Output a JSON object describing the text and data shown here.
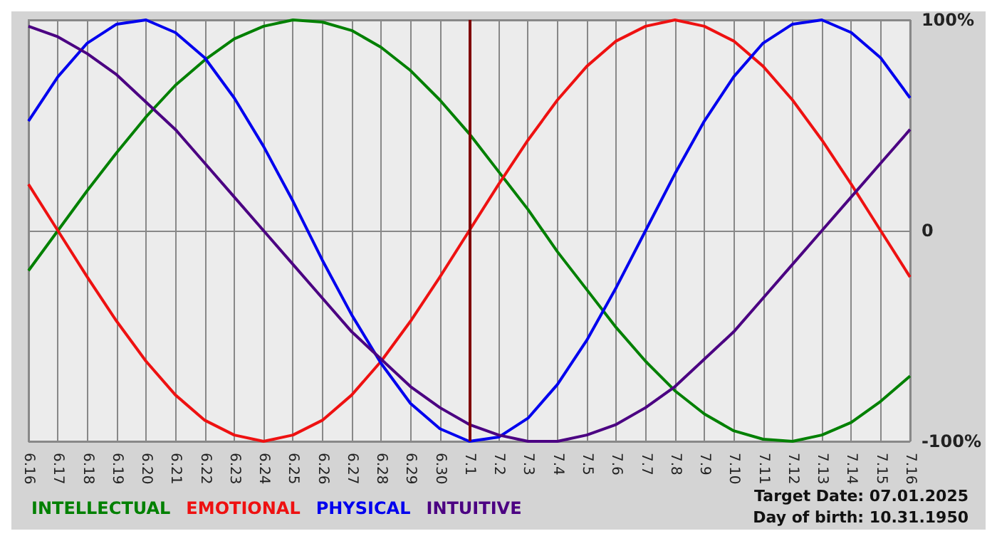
{
  "chart_data": {
    "type": "line",
    "categories": [
      "6.16",
      "6.17",
      "6.18",
      "6.19",
      "6.20",
      "6.21",
      "6.22",
      "6.23",
      "6.24",
      "6.25",
      "6.26",
      "6.27",
      "6.28",
      "6.29",
      "6.30",
      "7.1",
      "7.2",
      "7.3",
      "7.4",
      "7.5",
      "7.6",
      "7.7",
      "7.8",
      "7.9",
      "7.10",
      "7.11",
      "7.12",
      "7.13",
      "7.14",
      "7.15",
      "7.16"
    ],
    "series": [
      {
        "name": "INTELLECTUAL",
        "color": "#008000",
        "values": [
          -19,
          0,
          19,
          37,
          54,
          69,
          81,
          91,
          97,
          100,
          99,
          95,
          87,
          76,
          62,
          46,
          28,
          10,
          -10,
          -28,
          -46,
          -62,
          -76,
          -87,
          -95,
          -99,
          -100,
          -97,
          -91,
          -81,
          -69
        ]
      },
      {
        "name": "EMOTIONAL",
        "color": "#ee1111",
        "values": [
          22,
          0,
          -22,
          -43,
          -62,
          -78,
          -90,
          -97,
          -100,
          -97,
          -90,
          -78,
          -62,
          -43,
          -22,
          0,
          22,
          43,
          62,
          78,
          90,
          97,
          100,
          97,
          90,
          78,
          62,
          43,
          22,
          0,
          -22
        ]
      },
      {
        "name": "PHYSICAL",
        "color": "#0000ee",
        "values": [
          52,
          73,
          89,
          98,
          100,
          94,
          82,
          63,
          40,
          14,
          -14,
          -40,
          -63,
          -82,
          -94,
          -100,
          -98,
          -89,
          -73,
          -52,
          -27,
          0,
          27,
          52,
          73,
          89,
          98,
          100,
          94,
          82,
          63
        ]
      },
      {
        "name": "INTUITIVE",
        "color": "#4b0082",
        "values": [
          97,
          92,
          84,
          74,
          61,
          48,
          32,
          16,
          0,
          -16,
          -32,
          -48,
          -61,
          -74,
          -84,
          -92,
          -97,
          -100,
          -100,
          -97,
          -92,
          -84,
          -74,
          -61,
          -48,
          -32,
          -16,
          0,
          16,
          32,
          48
        ]
      }
    ],
    "ylim": [
      -100,
      100
    ],
    "yticks": [
      {
        "value": -100,
        "label": "-100%"
      },
      0,
      {
        "value": 100,
        "label": "100%"
      }
    ],
    "grid": true,
    "legend": "bottom left",
    "marker": "none",
    "line_style": "solid",
    "ref_lines": [
      {
        "axis": "x",
        "value": "7.1",
        "color": "#800000"
      }
    ],
    "annotations": [
      "Target Date: 07.01.2025",
      "Day of birth: 10.31.1950"
    ]
  }
}
